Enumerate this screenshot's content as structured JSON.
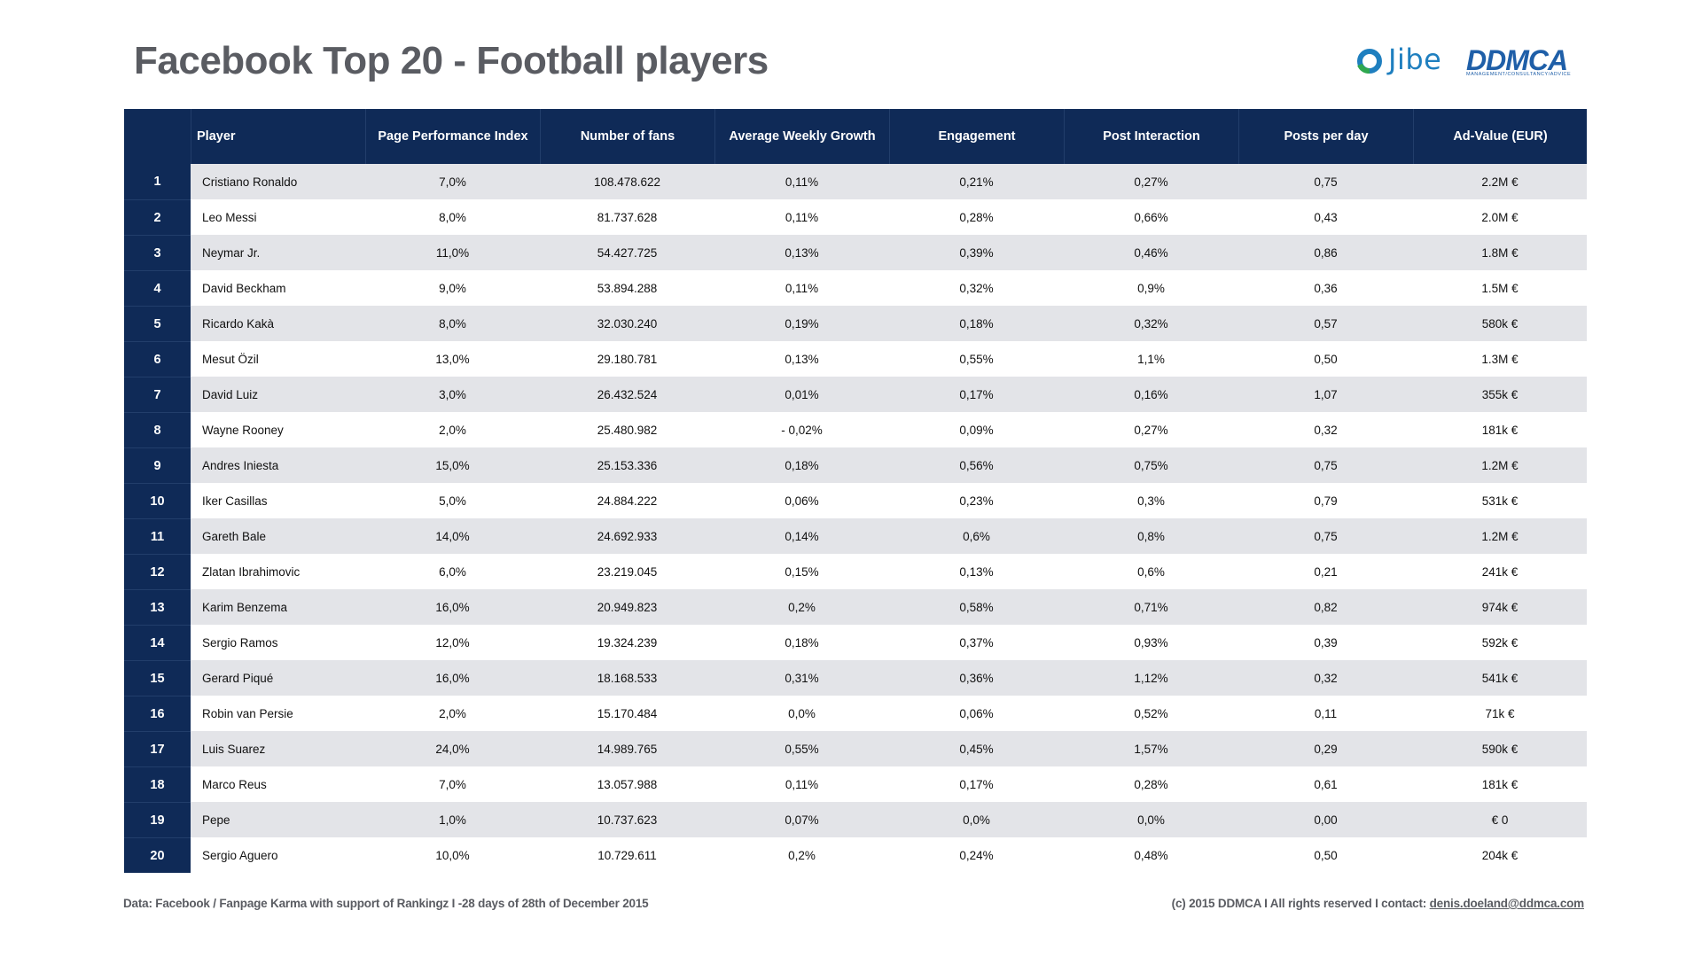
{
  "title": "Facebook Top 20 - Football players",
  "logos": {
    "jibe": "Jibe",
    "ddmca": "DDMCA",
    "ddmca_sub": "MANAGEMENT/CONSULTANCY/ADVICE",
    "jibe_color": "#1f7fbf",
    "ddmca_color": "#1f5fa8"
  },
  "colors": {
    "header_bg": "#0f2a57",
    "row_alt_bg": "#e3e4e8",
    "title_color": "#5a5c62"
  },
  "table": {
    "headers": [
      "",
      "Player",
      "Page Performance Index",
      "Number of fans",
      "Average Weekly Growth",
      "Engagement",
      "Post Interaction",
      "Posts per day",
      "Ad-Value (EUR)"
    ],
    "rows": [
      [
        "1",
        "Cristiano Ronaldo",
        "7,0%",
        "108.478.622",
        "0,11%",
        "0,21%",
        "0,27%",
        "0,75",
        "2.2M €"
      ],
      [
        "2",
        "Leo Messi",
        "8,0%",
        "81.737.628",
        "0,11%",
        "0,28%",
        "0,66%",
        "0,43",
        "2.0M €"
      ],
      [
        "3",
        "Neymar Jr.",
        "11,0%",
        "54.427.725",
        "0,13%",
        "0,39%",
        "0,46%",
        "0,86",
        "1.8M €"
      ],
      [
        "4",
        "David Beckham",
        "9,0%",
        "53.894.288",
        "0,11%",
        "0,32%",
        "0,9%",
        "0,36",
        "1.5M €"
      ],
      [
        "5",
        "Ricardo Kakà",
        "8,0%",
        "32.030.240",
        "0,19%",
        "0,18%",
        "0,32%",
        "0,57",
        "580k €"
      ],
      [
        "6",
        "Mesut Özil",
        "13,0%",
        "29.180.781",
        "0,13%",
        "0,55%",
        "1,1%",
        "0,50",
        "1.3M €"
      ],
      [
        "7",
        "David Luiz",
        "3,0%",
        "26.432.524",
        "0,01%",
        "0,17%",
        "0,16%",
        "1,07",
        "355k €"
      ],
      [
        "8",
        "Wayne Rooney",
        "2,0%",
        "25.480.982",
        "-  0,02%",
        "0,09%",
        "0,27%",
        "0,32",
        "181k €"
      ],
      [
        "9",
        "Andres Iniesta",
        "15,0%",
        "25.153.336",
        "0,18%",
        "0,56%",
        "0,75%",
        "0,75",
        "1.2M €"
      ],
      [
        "10",
        "Iker Casillas",
        "5,0%",
        "24.884.222",
        "0,06%",
        "0,23%",
        "0,3%",
        "0,79",
        "531k €"
      ],
      [
        "11",
        "Gareth Bale",
        "14,0%",
        "24.692.933",
        "0,14%",
        "0,6%",
        "0,8%",
        "0,75",
        "1.2M €"
      ],
      [
        "12",
        "Zlatan Ibrahimovic",
        "6,0%",
        "23.219.045",
        "0,15%",
        "0,13%",
        "0,6%",
        "0,21",
        "241k €"
      ],
      [
        "13",
        "Karim Benzema",
        "16,0%",
        "20.949.823",
        "0,2%",
        "0,58%",
        "0,71%",
        "0,82",
        "974k €"
      ],
      [
        "14",
        "Sergio Ramos",
        "12,0%",
        "19.324.239",
        "0,18%",
        "0,37%",
        "0,93%",
        "0,39",
        "592k €"
      ],
      [
        "15",
        "Gerard Piqué",
        "16,0%",
        "18.168.533",
        "0,31%",
        "0,36%",
        "1,12%",
        "0,32",
        "541k €"
      ],
      [
        "16",
        "Robin van Persie",
        "2,0%",
        "15.170.484",
        "0,0%",
        "0,06%",
        "0,52%",
        "0,11",
        "71k €"
      ],
      [
        "17",
        "Luis Suarez",
        "24,0%",
        "14.989.765",
        "0,55%",
        "0,45%",
        "1,57%",
        "0,29",
        "590k €"
      ],
      [
        "18",
        "Marco Reus",
        "7,0%",
        "13.057.988",
        "0,11%",
        "0,17%",
        "0,28%",
        "0,61",
        "181k €"
      ],
      [
        "19",
        "Pepe",
        "1,0%",
        "10.737.623",
        "0,07%",
        "0,0%",
        "0,0%",
        "0,00",
        "€ 0"
      ],
      [
        "20",
        "Sergio Aguero",
        "10,0%",
        "10.729.611",
        "0,2%",
        "0,24%",
        "0,48%",
        "0,50",
        "204k €"
      ]
    ]
  },
  "footer": {
    "source": "Data: Facebook / Fanpage Karma with support of Rankingz  I -28 days of 28th of December 2015",
    "copyright": "(c) 2015 DDMCA I All rights reserved I contact: ",
    "email": "denis.doeland@ddmca.com"
  }
}
